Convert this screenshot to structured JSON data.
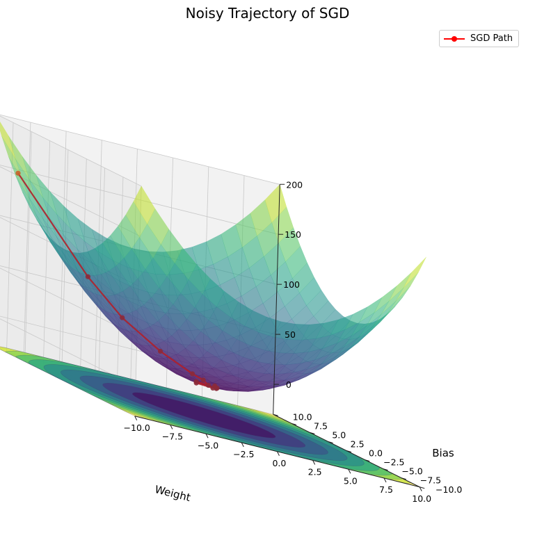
{
  "chart_data": {
    "type": "surface3d",
    "title": "Noisy Trajectory of SGD",
    "xlabel": "Weight",
    "ylabel": "Bias",
    "zlabel": "",
    "xlim": [
      -10,
      10
    ],
    "ylim": [
      -10,
      10
    ],
    "zlim": [
      -30,
      200
    ],
    "xticks": [
      "−10.0",
      "−7.5",
      "−5.0",
      "−2.5",
      "0.0",
      "2.5",
      "5.0",
      "7.5",
      "10.0"
    ],
    "yticks": [
      "−10.0",
      "−7.5",
      "−5.0",
      "−2.5",
      "0.0",
      "2.5",
      "5.0",
      "7.5",
      "10.0"
    ],
    "zticks": [
      "0",
      "50",
      "100",
      "150",
      "200"
    ],
    "surface": {
      "function": "z = w^2 + b^2",
      "colormap": "viridis",
      "alpha": 0.55
    },
    "contour": {
      "levels": [
        20,
        40,
        60,
        80,
        100,
        120,
        140,
        160,
        180
      ],
      "offset": -30
    },
    "series": [
      {
        "name": "SGD Path",
        "color": "#ff0000",
        "points": [
          {
            "w": -9.3,
            "b": 8.0,
            "z": 150.0
          },
          {
            "w": -5.0,
            "b": 6.5,
            "z": 67.2
          },
          {
            "w": -3.2,
            "b": 5.2,
            "z": 37.3
          },
          {
            "w": -1.2,
            "b": 3.8,
            "z": 15.9
          },
          {
            "w": 0.2,
            "b": 2.1,
            "z": 4.5
          },
          {
            "w": 0.6,
            "b": 1.4,
            "z": 2.3
          },
          {
            "w": 0.4,
            "b": 0.3,
            "z": 0.3
          },
          {
            "w": -0.3,
            "b": 0.6,
            "z": 0.5
          },
          {
            "w": 0.5,
            "b": -0.6,
            "z": 0.6
          },
          {
            "w": 0.9,
            "b": 0.4,
            "z": 1.0
          },
          {
            "w": 0.1,
            "b": -0.9,
            "z": 0.8
          },
          {
            "w": -0.7,
            "b": -0.2,
            "z": 0.5
          },
          {
            "w": 0.7,
            "b": -0.3,
            "z": 0.6
          }
        ]
      }
    ],
    "legend": "top-right",
    "grid": true
  }
}
